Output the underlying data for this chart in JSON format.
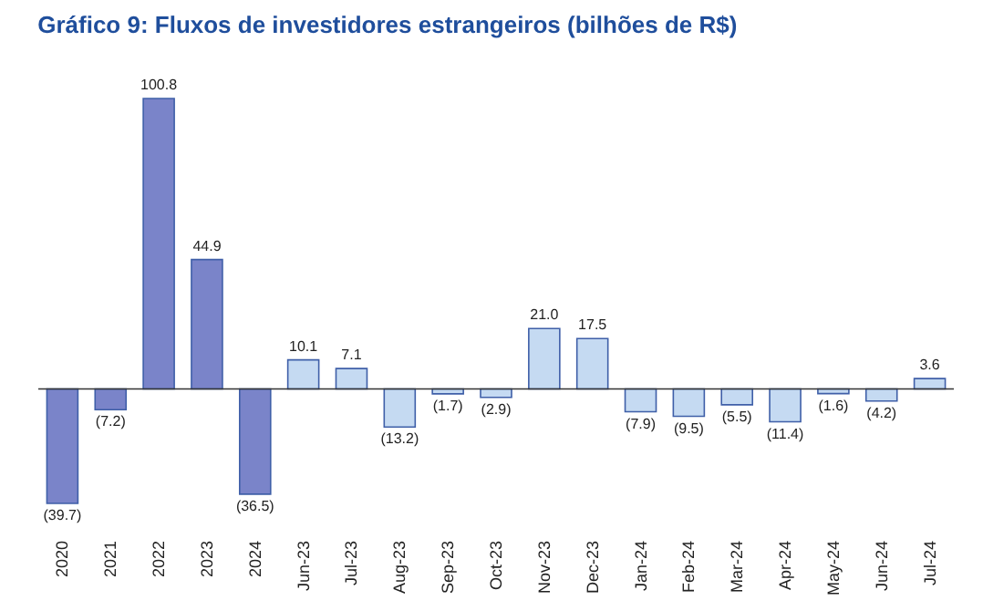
{
  "chart_data": {
    "type": "bar",
    "title": "Gráfico 9: Fluxos de investidores estrangeiros (bilhões de R$)",
    "categories": [
      "2020",
      "2021",
      "2022",
      "2023",
      "2024",
      "Jun-23",
      "Jul-23",
      "Aug-23",
      "Sep-23",
      "Oct-23",
      "Nov-23",
      "Dec-23",
      "Jan-24",
      "Feb-24",
      "Mar-24",
      "Apr-24",
      "May-24",
      "Jun-24",
      "Jul-24"
    ],
    "values": [
      -39.7,
      -7.2,
      100.8,
      44.9,
      -36.5,
      10.1,
      7.1,
      -13.2,
      -1.7,
      -2.9,
      21.0,
      17.5,
      -7.9,
      -9.5,
      -5.5,
      -11.4,
      -1.6,
      -4.2,
      3.6
    ],
    "value_labels": [
      "(39.7)",
      "(7.2)",
      "100.8",
      "44.9",
      "(36.5)",
      "10.1",
      "7.1",
      "(13.2)",
      "(1.7)",
      "(2.9)",
      "21.0",
      "17.5",
      "(7.9)",
      "(9.5)",
      "(5.5)",
      "(11.4)",
      "(1.6)",
      "(4.2)",
      "3.6"
    ],
    "colors": [
      "#7a84c9",
      "#7a84c9",
      "#7a84c9",
      "#7a84c9",
      "#7a84c9",
      "#c5daf2",
      "#c5daf2",
      "#c5daf2",
      "#c5daf2",
      "#c5daf2",
      "#c5daf2",
      "#c5daf2",
      "#c5daf2",
      "#c5daf2",
      "#c5daf2",
      "#c5daf2",
      "#c5daf2",
      "#c5daf2",
      "#c5daf2"
    ],
    "grid": false
  }
}
